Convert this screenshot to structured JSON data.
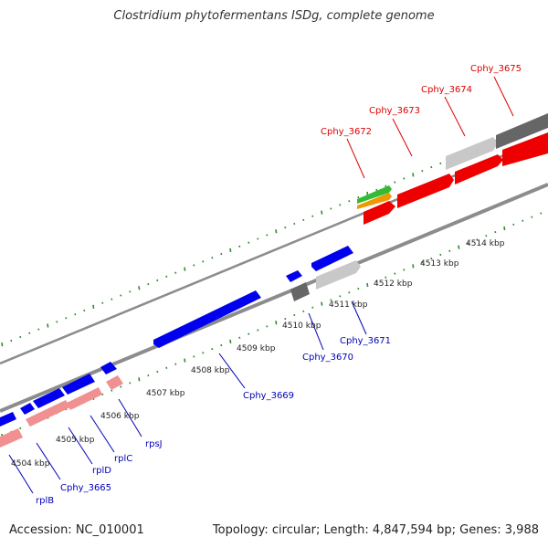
{
  "title": "Clostridium phytofermentans ISDg, complete genome",
  "footer": {
    "accession": "Accession: NC_010001",
    "summary": "Topology: circular; Length: 4,847,594 bp; Genes: 3,988"
  },
  "colors": {
    "backbone": "#8c8c8c",
    "tick": "#2e8b2e",
    "blue_gene": "#0000ee",
    "pink_gene": "#f09090",
    "red_gene": "#ee0000",
    "green_gene": "#33bb33",
    "orange_gene": "#ee9900",
    "light_gray_gene": "#c8c8c8",
    "dark_gray_gene": "#666666",
    "red_label": "#dd0000",
    "blue_label": "#0000bb"
  },
  "kbp_labels": [
    "4504 kbp",
    "4505 kbp",
    "4506 kbp",
    "4507 kbp",
    "4508 kbp",
    "4509 kbp",
    "4510 kbp",
    "4511 kbp",
    "4512 kbp",
    "4513 kbp",
    "4514 kbp"
  ],
  "top_labels": [
    "Cphy_3672",
    "Cphy_3673",
    "Cphy_3674",
    "Cphy_3675"
  ],
  "bottom_labels": [
    "Cphy_3669",
    "Cphy_3670",
    "Cphy_3671",
    "rpsJ",
    "rplC",
    "rplD",
    "Cphy_3665",
    "rplB"
  ]
}
